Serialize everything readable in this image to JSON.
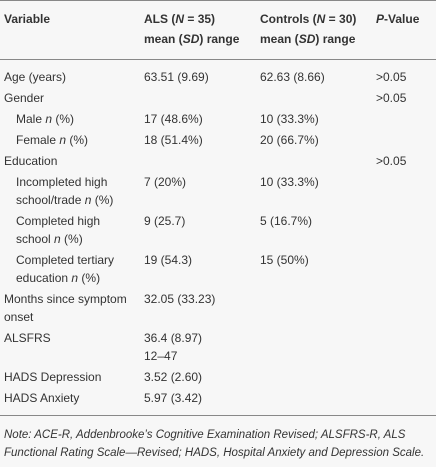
{
  "table": {
    "header": [
      [
        "Variable"
      ],
      [
        "ALS (",
        {
          "t": "N",
          "i": true
        },
        " = 35)",
        {
          "t": "mean (",
          "line": true
        },
        {
          "t": "SD",
          "i": true
        },
        ") range"
      ],
      [
        "Controls (",
        {
          "t": "N",
          "i": true
        },
        " = 30)",
        {
          "t": "mean (",
          "line": true
        },
        {
          "t": "SD",
          "i": true
        },
        ") range"
      ],
      [
        {
          "t": "P",
          "i": true
        },
        "-Value"
      ]
    ],
    "rows": [
      {
        "cells": [
          [
            "Age (years)"
          ],
          [
            "63.51 (9.69)"
          ],
          [
            "62.63 (8.66)"
          ],
          [
            ">0.05"
          ]
        ]
      },
      {
        "cells": [
          [
            "Gender"
          ],
          [],
          [],
          [
            ">0.05"
          ]
        ]
      },
      {
        "indent": true,
        "cells": [
          [
            "Male ",
            {
              "t": "n",
              "i": true
            },
            " (%)"
          ],
          [
            "17 (48.6%)"
          ],
          [
            "10 (33.3%)"
          ],
          []
        ]
      },
      {
        "indent": true,
        "cells": [
          [
            "Female ",
            {
              "t": "n",
              "i": true
            },
            " (%)"
          ],
          [
            "18 (51.4%)"
          ],
          [
            "20 (66.7%)"
          ],
          []
        ]
      },
      {
        "cells": [
          [
            "Education"
          ],
          [],
          [],
          [
            ">0.05"
          ]
        ]
      },
      {
        "indent": true,
        "cells": [
          [
            "Incompleted high school/trade ",
            {
              "t": "n",
              "i": true
            },
            " (%)"
          ],
          [
            "7 (20%)"
          ],
          [
            "10 (33.3%)"
          ],
          []
        ]
      },
      {
        "indent": true,
        "cells": [
          [
            "Completed high school ",
            {
              "t": "n",
              "i": true
            },
            " (%)"
          ],
          [
            "9 (25.7)"
          ],
          [
            "5 (16.7%)"
          ],
          []
        ]
      },
      {
        "indent": true,
        "cells": [
          [
            "Completed tertiary education ",
            {
              "t": "n",
              "i": true
            },
            " (%)"
          ],
          [
            "19 (54.3)"
          ],
          [
            "15 (50%)"
          ],
          []
        ]
      },
      {
        "cells": [
          [
            "Months since symptom onset"
          ],
          [
            "32.05 (33.23)"
          ],
          [],
          []
        ]
      },
      {
        "cells": [
          [
            "ALSFRS"
          ],
          [
            "36.4 (8.97)",
            {
              "t": "12–47",
              "line": true
            }
          ],
          [],
          []
        ]
      },
      {
        "cells": [
          [
            "HADS Depression"
          ],
          [
            "3.52 (2.60)"
          ],
          [],
          []
        ]
      },
      {
        "cells": [
          [
            "HADS Anxiety"
          ],
          [
            "5.97 (3.42)"
          ],
          [],
          []
        ]
      }
    ],
    "note": "Note: ACE-R, Addenbrooke’s Cognitive Examination Revised; ALSFRS-R, ALS Functional Rating Scale—Revised; HADS, Hospital Anxiety and Depression Scale."
  }
}
